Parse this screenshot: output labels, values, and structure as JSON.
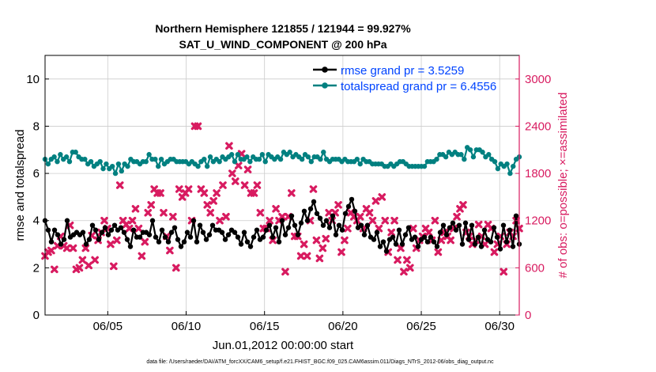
{
  "chart_data": {
    "type": "line",
    "title_line1": "Northern Hemisphere 121855 / 121944 = 99.927%",
    "title_line2": "SAT_U_WIND_COMPONENT @ 200 hPa",
    "xlabel": "Jun.01,2012 00:00:00 start",
    "ylabel_left": "rmse and totalspread",
    "ylabel_right": "# of obs: o=possible; ×=assimilated",
    "footer": "data file: /Users/raeder/DAI/ATM_forcXX/CAM6_setup/f.e21.FHIST_BGC.f09_025.CAM6assim.011/Diags_NTrS_2012-06/obs_diag_output.nc",
    "x_range_days": [
      1,
      31.25
    ],
    "ylim_left": [
      0,
      11
    ],
    "ylim_right": [
      0,
      3300
    ],
    "x_ticks": [
      {
        "day": 5,
        "label": "06/05"
      },
      {
        "day": 10,
        "label": "06/10"
      },
      {
        "day": 15,
        "label": "06/15"
      },
      {
        "day": 20,
        "label": "06/20"
      },
      {
        "day": 25,
        "label": "06/25"
      },
      {
        "day": 30,
        "label": "06/30"
      }
    ],
    "y_ticks_left": [
      "0",
      "2",
      "4",
      "6",
      "8",
      "10"
    ],
    "y_ticks_right": [
      "0",
      "600",
      "1200",
      "1800",
      "2400",
      "3000"
    ],
    "colors": {
      "rmse": "#000000",
      "spread": "#008080",
      "obs": "#d81b60",
      "legend_text": "#0044ff",
      "grid": "#cccccc"
    },
    "series": [
      {
        "name": "rmse grand pr = 3.5259",
        "axis": "left",
        "marker": "circle",
        "values": [
          4.0,
          3.6,
          3.1,
          3.6,
          3.4,
          3.0,
          3.2,
          4.0,
          3.3,
          3.4,
          3.5,
          3.4,
          3.5,
          3.0,
          3.2,
          3.8,
          3.6,
          3.2,
          3.5,
          3.7,
          3.4,
          3.6,
          3.8,
          3.6,
          3.7,
          3.5,
          3.2,
          2.9,
          3.6,
          3.3,
          3.3,
          3.5,
          3.5,
          3.4,
          4.0,
          3.3,
          3.1,
          3.6,
          3.3,
          3.1,
          3.5,
          3.7,
          3.2,
          2.9,
          3.1,
          3.5,
          3.3,
          4.0,
          3.1,
          3.8,
          3.5,
          3.2,
          3.4,
          3.8,
          3.6,
          3.6,
          3.5,
          3.2,
          3.4,
          3.6,
          3.5,
          3.3,
          3.0,
          3.5,
          3.1,
          2.9,
          3.3,
          3.6,
          3.2,
          3.3,
          3.6,
          3.8,
          3.3,
          3.7,
          3.1,
          4.0,
          3.4,
          3.7,
          4.2,
          3.8,
          3.4,
          3.9,
          4.4,
          4.0,
          4.5,
          4.8,
          4.3,
          4.1,
          3.8,
          4.0,
          3.7,
          4.2,
          3.4,
          3.8,
          3.6,
          4.3,
          4.6,
          4.9,
          4.4,
          3.7,
          3.8,
          3.4,
          3.8,
          3.3,
          3.2,
          3.5,
          2.9,
          3.1,
          2.7,
          3.2,
          3.3,
          3.0,
          3.6,
          3.0,
          3.4,
          3.7,
          3.2,
          3.3,
          2.9,
          3.2,
          3.3,
          3.1,
          3.3,
          3.1,
          2.9,
          3.5,
          3.8,
          3.4,
          3.7,
          3.9,
          3.6,
          3.8,
          3.0,
          3.9,
          3.2,
          3.8,
          3.0,
          3.3,
          2.9,
          3.6,
          3.2,
          3.1,
          3.7,
          3.3,
          2.8,
          3.8,
          3.1,
          3.6,
          2.9,
          4.2,
          3.0
        ]
      },
      {
        "name": "totalspread grand pr = 6.4556",
        "axis": "left",
        "marker": "circle",
        "values": [
          6.6,
          6.4,
          6.6,
          6.7,
          6.5,
          6.8,
          6.6,
          6.7,
          6.5,
          6.9,
          6.9,
          6.7,
          6.6,
          6.6,
          6.4,
          6.5,
          6.3,
          6.4,
          6.5,
          6.2,
          6.4,
          6.2,
          6.3,
          6.0,
          6.4,
          6.1,
          6.4,
          6.3,
          6.6,
          6.5,
          6.5,
          6.4,
          6.5,
          6.5,
          6.8,
          6.6,
          6.6,
          6.3,
          6.6,
          6.4,
          6.5,
          6.6,
          6.6,
          6.5,
          6.5,
          6.5,
          6.5,
          6.4,
          6.5,
          6.4,
          6.3,
          6.5,
          6.6,
          6.3,
          6.7,
          6.5,
          6.6,
          6.5,
          6.7,
          6.6,
          6.7,
          6.8,
          6.5,
          6.8,
          6.6,
          6.6,
          6.7,
          6.5,
          6.7,
          6.6,
          6.6,
          6.8,
          6.5,
          6.8,
          6.7,
          6.6,
          6.7,
          6.6,
          6.9,
          6.8,
          6.9,
          6.7,
          6.8,
          6.7,
          6.6,
          6.8,
          6.7,
          6.5,
          6.7,
          6.7,
          6.6,
          6.9,
          6.6,
          6.5,
          6.6,
          6.6,
          6.6,
          6.5,
          6.6,
          6.5,
          6.5,
          6.5,
          6.6,
          6.4,
          6.6,
          6.5,
          6.5,
          6.4,
          6.4,
          6.4,
          6.4,
          6.3,
          6.3,
          6.4,
          6.3,
          6.4,
          6.5,
          6.5,
          6.4,
          6.3,
          6.3,
          6.3,
          6.3,
          6.3,
          6.3,
          6.5,
          6.5,
          6.5,
          6.6,
          6.8,
          6.8,
          6.7,
          6.9,
          6.8,
          6.9,
          6.8,
          6.8,
          6.6,
          7.1,
          7.0,
          6.7,
          7.0,
          7.0,
          6.9,
          6.7,
          6.8,
          6.6,
          6.5,
          6.2,
          6.4,
          6.3,
          6.4,
          6.0,
          6.3,
          6.6,
          6.7
        ]
      },
      {
        "name": "assimilated",
        "axis": "right",
        "marker": "x",
        "values": [
          750,
          800,
          820,
          580,
          880,
          1000,
          880,
          850,
          1140,
          850,
          580,
          600,
          700,
          850,
          630,
          1010,
          700,
          950,
          1050,
          1200,
          1100,
          900,
          620,
          950,
          1650,
          1200,
          1150,
          1100,
          1200,
          1350,
          1100,
          750,
          930,
          1300,
          1400,
          1600,
          1550,
          1550,
          1300,
          1000,
          820,
          1250,
          600,
          1600,
          1500,
          1550,
          1600,
          1200,
          2400,
          2400,
          1600,
          1550,
          1400,
          1300,
          1450,
          1550,
          1200,
          1650,
          1250,
          2150,
          1800,
          1700,
          1900,
          2050,
          1650,
          1850,
          1550,
          1550,
          1650,
          1300,
          1100,
          1100,
          1200,
          950,
          1350,
          1200,
          1250,
          550,
          1250,
          1550,
          1000,
          1000,
          750,
          900,
          750,
          1200,
          1600,
          950,
          720,
          850,
          970,
          1300,
          1200,
          1300,
          1400,
          800,
          950,
          1100,
          1300,
          1250,
          1200,
          1250,
          1100,
          1350,
          1300,
          1200,
          1450,
          1100,
          1500,
          1200,
          800,
          1050,
          1200,
          700,
          850,
          550,
          700,
          600,
          1100,
          850,
          950,
          1000,
          1100,
          1050,
          950,
          1200,
          800,
          950,
          1050,
          1000,
          950,
          1100,
          1250,
          1350,
          1400,
          1050,
          1000,
          900,
          950,
          1150,
          1000,
          900,
          1150,
          1100,
          800,
          900,
          1000,
          550,
          900,
          1050,
          1000,
          1200,
          1100
        ]
      }
    ]
  }
}
